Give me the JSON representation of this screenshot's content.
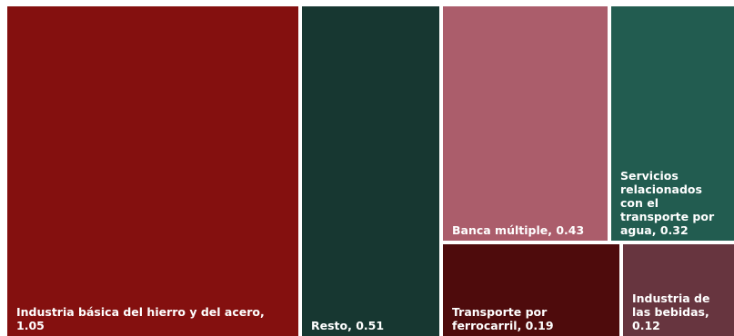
{
  "chart_data": {
    "type": "treemap",
    "items": [
      {
        "label": "Industria básica del hierro y del acero,  1.05",
        "value": 1.05,
        "color": "#84100f"
      },
      {
        "label": "Resto,  0.51",
        "value": 0.51,
        "color": "#173731"
      },
      {
        "label": "Banca múltiple,  0.43",
        "value": 0.43,
        "color": "#ab5d6b"
      },
      {
        "label": "Servicios\nrelacionados\ncon el\ntransporte por\nagua,  0.32",
        "value": 0.32,
        "color": "#225c50"
      },
      {
        "label": "Transporte por\nferrocarril,  0.19",
        "value": 0.19,
        "color": "#4e0b0c"
      },
      {
        "label": "Industria de\nlas bebidas,\n0.12",
        "value": 0.12,
        "color": "#67353f"
      }
    ]
  }
}
